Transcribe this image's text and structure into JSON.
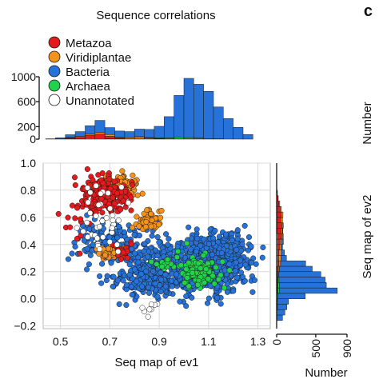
{
  "chart_data": {
    "type": "scatter",
    "title": "Sequence correlations",
    "panel_label": "c",
    "xlabel": "Seq map of ev1",
    "ylabel": "Seq map of ev2",
    "xlim": [
      0.43,
      1.35
    ],
    "ylim": [
      -0.22,
      1.0
    ],
    "x_ticks": [
      "0.5",
      "0.7",
      "0.9",
      "1.1",
      "1.3"
    ],
    "x_tick_values": [
      0.5,
      0.7,
      0.9,
      1.1,
      1.3
    ],
    "y_ticks": [
      "1.0",
      "0.8",
      "0.6",
      "0.4",
      "0.2",
      "0.0",
      "−0.2"
    ],
    "y_tick_values": [
      1.0,
      0.8,
      0.6,
      0.4,
      0.2,
      0.0,
      -0.2
    ],
    "grid": true,
    "legend_position": "top-left",
    "series": [
      {
        "name": "Metazoa",
        "color": "#e41a1c",
        "clusters": [
          {
            "x": 0.68,
            "y": 0.76,
            "sx": 0.045,
            "sy": 0.06,
            "n": 230
          },
          {
            "x": 0.76,
            "y": 0.36,
            "sx": 0.025,
            "sy": 0.04,
            "n": 20
          },
          {
            "x": 0.58,
            "y": 0.62,
            "sx": 0.05,
            "sy": 0.1,
            "n": 20
          }
        ]
      },
      {
        "name": "Viridiplantae",
        "color": "#f5921e",
        "clusters": [
          {
            "x": 0.74,
            "y": 0.83,
            "sx": 0.035,
            "sy": 0.045,
            "n": 100
          },
          {
            "x": 0.86,
            "y": 0.57,
            "sx": 0.025,
            "sy": 0.035,
            "n": 60
          },
          {
            "x": 0.7,
            "y": 0.34,
            "sx": 0.03,
            "sy": 0.03,
            "n": 45
          }
        ]
      },
      {
        "name": "Bacteria",
        "color": "#2672d8",
        "clusters": [
          {
            "x": 1.1,
            "y": 0.25,
            "sx": 0.075,
            "sy": 0.1,
            "n": 620
          },
          {
            "x": 0.91,
            "y": 0.22,
            "sx": 0.08,
            "sy": 0.11,
            "n": 300
          },
          {
            "x": 0.7,
            "y": 0.42,
            "sx": 0.07,
            "sy": 0.08,
            "n": 160
          },
          {
            "x": 1.18,
            "y": 0.38,
            "sx": 0.04,
            "sy": 0.06,
            "n": 90
          },
          {
            "x": 0.82,
            "y": 0.14,
            "sx": 0.07,
            "sy": 0.06,
            "n": 90
          }
        ]
      },
      {
        "name": "Archaea",
        "color": "#22d24a",
        "clusters": [
          {
            "x": 1.06,
            "y": 0.2,
            "sx": 0.04,
            "sy": 0.06,
            "n": 110
          },
          {
            "x": 0.92,
            "y": 0.26,
            "sx": 0.02,
            "sy": 0.02,
            "n": 14
          }
        ]
      },
      {
        "name": "Unannotated",
        "color": "#ffffff",
        "clusters": [
          {
            "x": 0.66,
            "y": 0.62,
            "sx": 0.05,
            "sy": 0.12,
            "n": 30
          },
          {
            "x": 0.86,
            "y": -0.06,
            "sx": 0.02,
            "sy": 0.03,
            "n": 8
          },
          {
            "x": 0.66,
            "y": 0.42,
            "sx": 0.04,
            "sy": 0.05,
            "n": 8
          }
        ]
      }
    ],
    "top_histogram": {
      "ylabel": "Number",
      "y_ticks": [
        "1000",
        "600",
        "200",
        "0"
      ],
      "y_tick_values": [
        1000,
        600,
        200,
        0
      ],
      "ylim": [
        0,
        1000
      ],
      "bin_edges_start": 0.44,
      "bin_width": 0.04,
      "bins": [
        {
          "Unannotated": 0,
          "Metazoa": 0,
          "Viridiplantae": 0,
          "Archaea": 0,
          "Bacteria": 5
        },
        {
          "Unannotated": 0,
          "Metazoa": 5,
          "Viridiplantae": 0,
          "Archaea": 0,
          "Bacteria": 15
        },
        {
          "Unannotated": 5,
          "Metazoa": 15,
          "Viridiplantae": 5,
          "Archaea": 0,
          "Bacteria": 45
        },
        {
          "Unannotated": 5,
          "Metazoa": 25,
          "Viridiplantae": 15,
          "Archaea": 0,
          "Bacteria": 75
        },
        {
          "Unannotated": 10,
          "Metazoa": 55,
          "Viridiplantae": 20,
          "Archaea": 0,
          "Bacteria": 130
        },
        {
          "Unannotated": 10,
          "Metazoa": 70,
          "Viridiplantae": 30,
          "Archaea": 0,
          "Bacteria": 190
        },
        {
          "Unannotated": 5,
          "Metazoa": 40,
          "Viridiplantae": 30,
          "Archaea": 0,
          "Bacteria": 110
        },
        {
          "Unannotated": 5,
          "Metazoa": 15,
          "Viridiplantae": 10,
          "Archaea": 0,
          "Bacteria": 100
        },
        {
          "Unannotated": 0,
          "Metazoa": 5,
          "Viridiplantae": 20,
          "Archaea": 0,
          "Bacteria": 95
        },
        {
          "Unannotated": 0,
          "Metazoa": 5,
          "Viridiplantae": 30,
          "Archaea": 5,
          "Bacteria": 120
        },
        {
          "Unannotated": 0,
          "Metazoa": 5,
          "Viridiplantae": 15,
          "Archaea": 5,
          "Bacteria": 130
        },
        {
          "Unannotated": 0,
          "Metazoa": 5,
          "Viridiplantae": 5,
          "Archaea": 10,
          "Bacteria": 185
        },
        {
          "Unannotated": 0,
          "Metazoa": 5,
          "Viridiplantae": 0,
          "Archaea": 15,
          "Bacteria": 340
        },
        {
          "Unannotated": 0,
          "Metazoa": 5,
          "Viridiplantae": 0,
          "Archaea": 25,
          "Bacteria": 670
        },
        {
          "Unannotated": 0,
          "Metazoa": 5,
          "Viridiplantae": 0,
          "Archaea": 20,
          "Bacteria": 950
        },
        {
          "Unannotated": 0,
          "Metazoa": 5,
          "Viridiplantae": 0,
          "Archaea": 15,
          "Bacteria": 860
        },
        {
          "Unannotated": 0,
          "Metazoa": 0,
          "Viridiplantae": 0,
          "Archaea": 5,
          "Bacteria": 760
        },
        {
          "Unannotated": 0,
          "Metazoa": 0,
          "Viridiplantae": 0,
          "Archaea": 5,
          "Bacteria": 510
        },
        {
          "Unannotated": 0,
          "Metazoa": 0,
          "Viridiplantae": 0,
          "Archaea": 0,
          "Bacteria": 330
        },
        {
          "Unannotated": 0,
          "Metazoa": 0,
          "Viridiplantae": 0,
          "Archaea": 0,
          "Bacteria": 190
        },
        {
          "Unannotated": 0,
          "Metazoa": 0,
          "Viridiplantae": 0,
          "Archaea": 0,
          "Bacteria": 75
        }
      ]
    },
    "side_histogram": {
      "xlabel": "Number",
      "x_ticks": [
        "0",
        "500",
        "900"
      ],
      "x_tick_values": [
        0,
        500,
        900
      ],
      "xlim": [
        0,
        900
      ],
      "bin_edges_start": -0.16,
      "bin_width": 0.04,
      "bins": [
        {
          "Unannotated": 5,
          "Metazoa": 0,
          "Viridiplantae": 0,
          "Archaea": 0,
          "Bacteria": 70
        },
        {
          "Unannotated": 5,
          "Metazoa": 0,
          "Viridiplantae": 0,
          "Archaea": 0,
          "Bacteria": 100
        },
        {
          "Unannotated": 5,
          "Metazoa": 0,
          "Viridiplantae": 0,
          "Archaea": 5,
          "Bacteria": 120
        },
        {
          "Unannotated": 5,
          "Metazoa": 0,
          "Viridiplantae": 0,
          "Archaea": 5,
          "Bacteria": 140
        },
        {
          "Unannotated": 5,
          "Metazoa": 0,
          "Viridiplantae": 0,
          "Archaea": 10,
          "Bacteria": 350
        },
        {
          "Unannotated": 5,
          "Metazoa": 5,
          "Viridiplantae": 5,
          "Archaea": 20,
          "Bacteria": 740
        },
        {
          "Unannotated": 5,
          "Metazoa": 5,
          "Viridiplantae": 5,
          "Archaea": 20,
          "Bacteria": 600
        },
        {
          "Unannotated": 5,
          "Metazoa": 5,
          "Viridiplantae": 5,
          "Archaea": 15,
          "Bacteria": 590
        },
        {
          "Unannotated": 5,
          "Metazoa": 5,
          "Viridiplantae": 10,
          "Archaea": 5,
          "Bacteria": 540
        },
        {
          "Unannotated": 5,
          "Metazoa": 10,
          "Viridiplantae": 15,
          "Archaea": 5,
          "Bacteria": 420
        },
        {
          "Unannotated": 10,
          "Metazoa": 20,
          "Viridiplantae": 20,
          "Archaea": 0,
          "Bacteria": 320
        },
        {
          "Unannotated": 10,
          "Metazoa": 15,
          "Viridiplantae": 30,
          "Archaea": 0,
          "Bacteria": 70
        },
        {
          "Unannotated": 10,
          "Metazoa": 20,
          "Viridiplantae": 30,
          "Archaea": 0,
          "Bacteria": 40
        },
        {
          "Unannotated": 10,
          "Metazoa": 25,
          "Viridiplantae": 20,
          "Archaea": 0,
          "Bacteria": 20
        },
        {
          "Unannotated": 10,
          "Metazoa": 35,
          "Viridiplantae": 20,
          "Archaea": 0,
          "Bacteria": 20
        },
        {
          "Unannotated": 10,
          "Metazoa": 45,
          "Viridiplantae": 15,
          "Archaea": 0,
          "Bacteria": 15
        },
        {
          "Unannotated": 5,
          "Metazoa": 55,
          "Viridiplantae": 15,
          "Archaea": 0,
          "Bacteria": 5
        },
        {
          "Unannotated": 5,
          "Metazoa": 60,
          "Viridiplantae": 15,
          "Archaea": 0,
          "Bacteria": 5
        },
        {
          "Unannotated": 5,
          "Metazoa": 50,
          "Viridiplantae": 20,
          "Archaea": 0,
          "Bacteria": 0
        },
        {
          "Unannotated": 5,
          "Metazoa": 55,
          "Viridiplantae": 20,
          "Archaea": 0,
          "Bacteria": 0
        },
        {
          "Unannotated": 5,
          "Metazoa": 40,
          "Viridiplantae": 15,
          "Archaea": 0,
          "Bacteria": 0
        },
        {
          "Unannotated": 5,
          "Metazoa": 25,
          "Viridiplantae": 10,
          "Archaea": 0,
          "Bacteria": 0
        },
        {
          "Unannotated": 0,
          "Metazoa": 15,
          "Viridiplantae": 5,
          "Archaea": 0,
          "Bacteria": 0
        },
        {
          "Unannotated": 0,
          "Metazoa": 5,
          "Viridiplantae": 5,
          "Archaea": 0,
          "Bacteria": 0
        }
      ]
    }
  }
}
